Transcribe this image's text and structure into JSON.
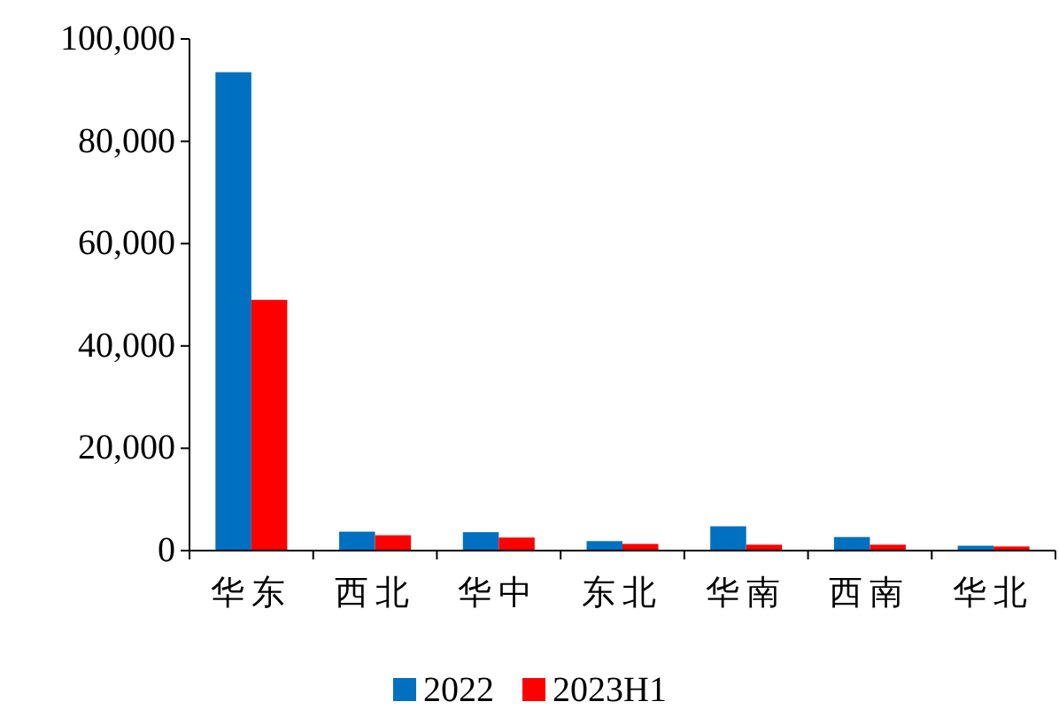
{
  "chart_data": {
    "type": "bar",
    "categories": [
      "华东",
      "西北",
      "华中",
      "东北",
      "华南",
      "西南",
      "华北"
    ],
    "series": [
      {
        "name": "2022",
        "color": "#0070c0",
        "values": [
          93500,
          3700,
          3600,
          1850,
          4750,
          2650,
          950
        ]
      },
      {
        "name": "2023H1",
        "color": "#ff0000",
        "values": [
          49000,
          3000,
          2550,
          1300,
          1150,
          1150,
          800
        ]
      }
    ],
    "ylim": [
      0,
      100000
    ],
    "yticks": [
      {
        "value": 0,
        "label": "0"
      },
      {
        "value": 20000,
        "label": "20,000"
      },
      {
        "value": 40000,
        "label": "40,000"
      },
      {
        "value": 60000,
        "label": "60,000"
      },
      {
        "value": 80000,
        "label": "80,000"
      },
      {
        "value": 100000,
        "label": "100,000"
      }
    ],
    "grid": false,
    "legend": "bottom"
  }
}
